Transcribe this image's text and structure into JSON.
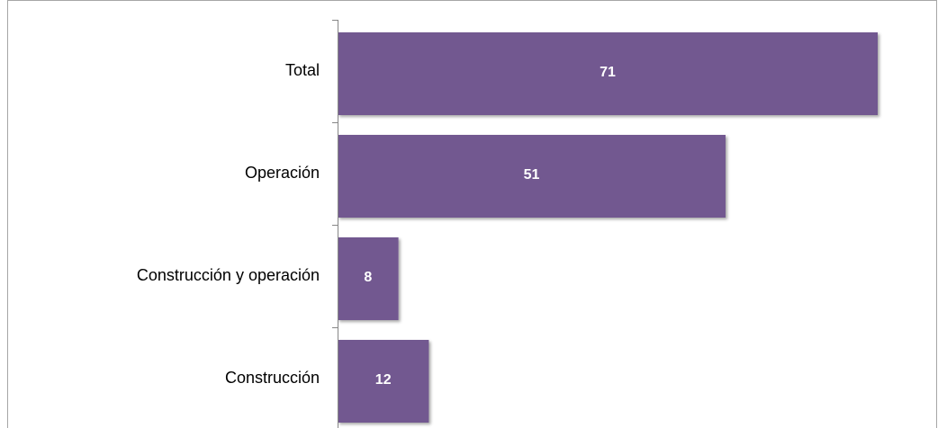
{
  "chart_data": {
    "type": "bar",
    "orientation": "horizontal",
    "categories": [
      "Total",
      "Operación",
      "Construcción y operación",
      "Construcción"
    ],
    "values": [
      71,
      51,
      8,
      12
    ],
    "color": "#725990"
  }
}
